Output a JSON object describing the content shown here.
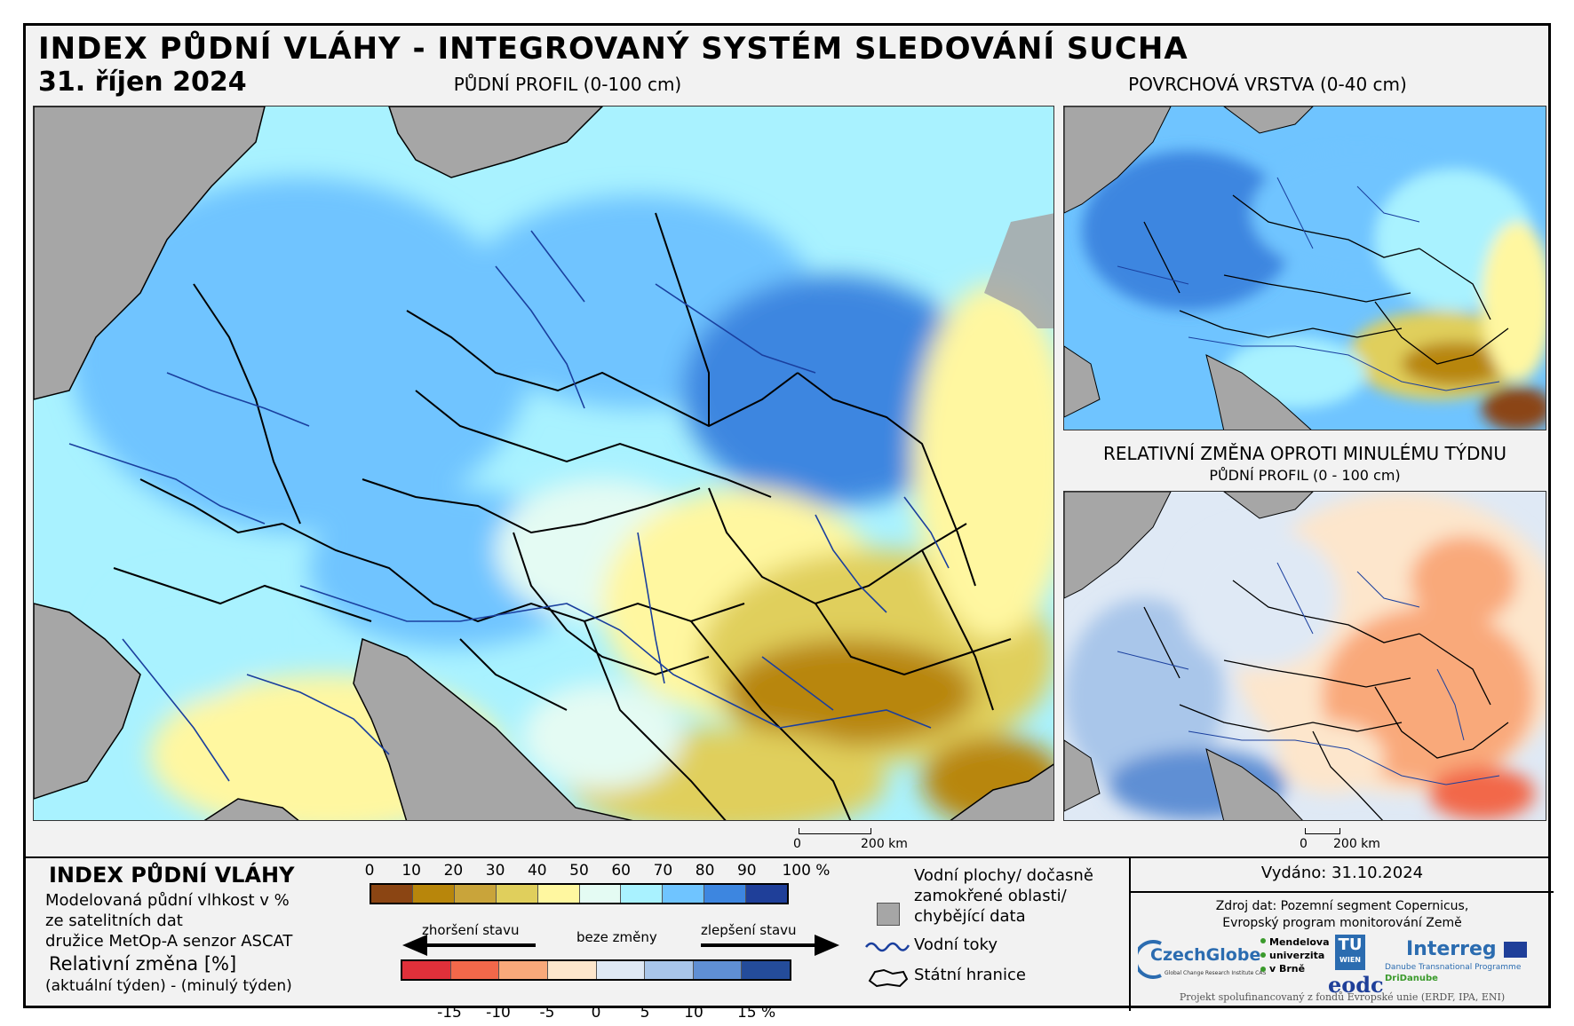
{
  "header": {
    "title": "INDEX PŮDNÍ VLÁHY - INTEGROVANÝ SYSTÉM SLEDOVÁNÍ SUCHA",
    "date": "31. říjen 2024"
  },
  "maps": {
    "main_title": "PŮDNÍ PROFIL (0-100 cm)",
    "top_right_title": "POVRCHOVÁ VRSTVA (0-40 cm)",
    "bottom_right_title": "RELATIVNÍ ZMĚNA OPROTI MINULÉMU TÝDNU",
    "bottom_right_subtitle": "PŮDNÍ PROFIL (0 - 100 cm)",
    "scale_main": {
      "zero": "0",
      "end": "200 km"
    },
    "scale_right": {
      "zero": "0",
      "end": "200 km"
    }
  },
  "legend": {
    "heading": "INDEX PŮDNÍ VLÁHY",
    "desc_line1": "Modelovaná půdní vlhkost v %",
    "desc_line2": "ze satelitních dat",
    "desc_line3": "družice MetOp-A senzor ASCAT",
    "rel_heading": "Relativní změna [%]",
    "rel_desc": "(aktuální týden) - (minulý týden)",
    "moisture_ticks": [
      "0",
      "10",
      "20",
      "30",
      "40",
      "50",
      "60",
      "70",
      "80",
      "90",
      "100 %"
    ],
    "moisture_colors": [
      "#8b4513",
      "#b8860b",
      "#c9a43a",
      "#e0cf5c",
      "#fff7a0",
      "#e4fbf3",
      "#a9f2ff",
      "#6fc4ff",
      "#3d86e0",
      "#1f3f99"
    ],
    "change_ticks": [
      "-15",
      "-10",
      "-5",
      "0",
      "5",
      "10",
      "15 %"
    ],
    "change_colors": [
      "#e0303a",
      "#f2684a",
      "#f9a97a",
      "#fde6cc",
      "#dfe9f5",
      "#a9c6ea",
      "#5f8fd4",
      "#244c9a"
    ],
    "worse_label": "zhoršení stavu",
    "nochange_label": "beze změny",
    "better_label": "zlepšení stavu",
    "water_bodies": "Vodní plochy/ dočasně zamokřené oblasti/ chybějící data",
    "water_bodies_l1": "Vodní plochy/ dočasně",
    "water_bodies_l2": "zamokřené oblasti/",
    "water_bodies_l3": "chybějící data",
    "rivers": "Vodní toky",
    "borders": "Státní hranice"
  },
  "footer": {
    "issued": "Vydáno: 31.10.2024",
    "source_l1": "Zdroj dat: Pozemní segment Copernicus,",
    "source_l2": "Evropský program monitorování Země",
    "logo_czechglobe": "CzechGlobe",
    "logo_czechglobe_sub": "Global Change Research Institute CAS",
    "logo_mendel_l1": "Mendelova",
    "logo_mendel_l2": "univerzita",
    "logo_mendel_l3": "v Brně",
    "logo_tu": "TU",
    "logo_tu_sub": "WIEN",
    "logo_eodc": "eodc",
    "logo_interreg": "Interreg",
    "logo_interreg_sub": "Danube Transnational Programme",
    "logo_dridanube": "DriDanube",
    "project_note": "Projekt spolufinancovaný z fondů Evropské unie (ERDF, IPA, ENI)"
  }
}
